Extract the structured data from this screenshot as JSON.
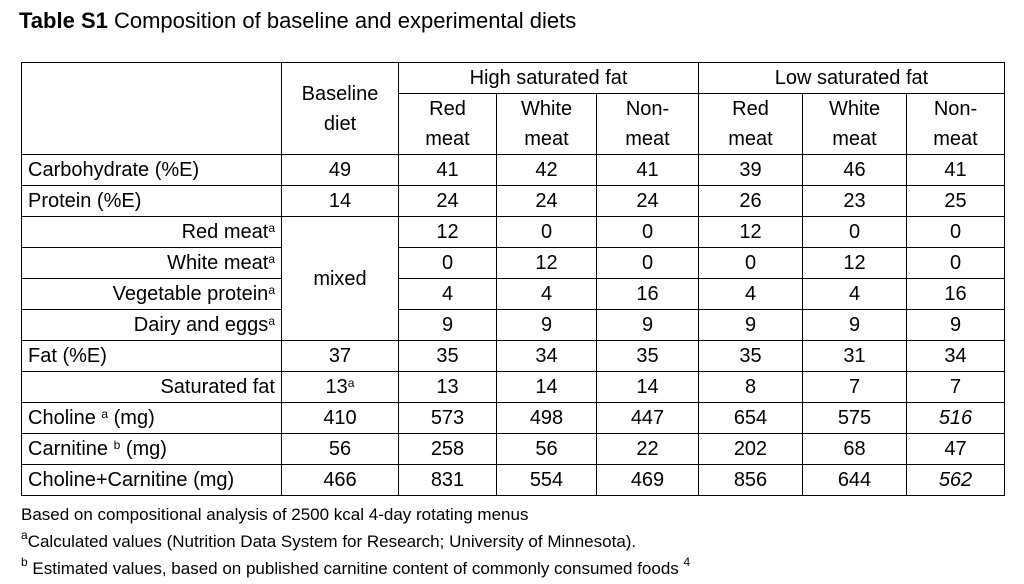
{
  "title": {
    "bold": "Table S1",
    "text": "Composition of baseline and experimental diets"
  },
  "headers": {
    "baseline": [
      "Baseline",
      "diet"
    ],
    "group_high": "High saturated fat",
    "group_low": "Low saturated fat",
    "sub": [
      [
        "Red",
        "meat"
      ],
      [
        "White",
        "meat"
      ],
      [
        "Non-",
        "meat"
      ]
    ]
  },
  "rows": [
    {
      "label": "Carbohydrate (%E)",
      "baseline": "49",
      "values": [
        "41",
        "42",
        "41",
        "39",
        "46",
        "41"
      ]
    },
    {
      "label": "Protein (%E)",
      "baseline": "14",
      "values": [
        "24",
        "24",
        "24",
        "26",
        "23",
        "25"
      ]
    },
    {
      "label": "Red meat",
      "sup": "a",
      "baseline": "",
      "values": [
        "12",
        "0",
        "0",
        "12",
        "0",
        "0"
      ]
    },
    {
      "label": "White meat",
      "sup": "a",
      "baseline": "mixed",
      "values": [
        "0",
        "12",
        "0",
        "0",
        "12",
        "0"
      ]
    },
    {
      "label": "Vegetable protein",
      "sup": "a",
      "baseline": "",
      "values": [
        "4",
        "4",
        "16",
        "4",
        "4",
        "16"
      ]
    },
    {
      "label": "Dairy and eggs",
      "sup": "a",
      "baseline": "",
      "values": [
        "9",
        "9",
        "9",
        "9",
        "9",
        "9"
      ]
    },
    {
      "label": "Fat (%E)",
      "baseline": "37",
      "values": [
        "35",
        "34",
        "35",
        "35",
        "31",
        "34"
      ]
    },
    {
      "label": "Saturated fat",
      "baseline": "13",
      "baseline_sup": "a",
      "values": [
        "13",
        "14",
        "14",
        "8",
        "7",
        "7"
      ]
    },
    {
      "label_pre": "Choline",
      "sup": "a",
      "label_post": " (mg)",
      "baseline": "410",
      "values": [
        "573",
        "498",
        "447",
        "654",
        "575",
        "516"
      ]
    },
    {
      "label_pre": "Carnitine",
      "sup": "b",
      "label_post": "(mg)",
      "baseline": "56",
      "values": [
        "258",
        "56",
        "22",
        "202",
        "68",
        "47"
      ]
    },
    {
      "label": "Choline+Carnitine (mg)",
      "baseline": "466",
      "values": [
        "831",
        "554",
        "469",
        "856",
        "644",
        "562"
      ]
    }
  ],
  "footnotes": [
    {
      "sup": "",
      "text": "Based on compositional analysis of 2500 kcal 4-day rotating menus"
    },
    {
      "sup": "a",
      "text": "Calculated values (Nutrition Data System for Research; University of Minnesota)."
    },
    {
      "sup": "b",
      "text": " Estimated values, based on published carnitine content of commonly consumed foods ",
      "tail": "4"
    }
  ]
}
